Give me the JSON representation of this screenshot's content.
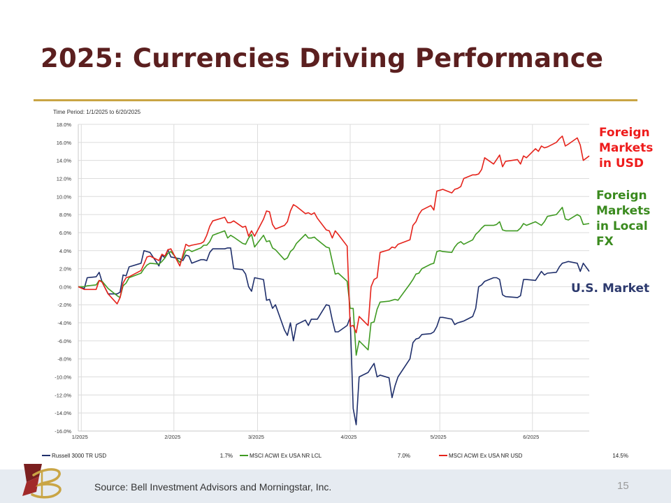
{
  "slide": {
    "title": "2025: Currencies Driving Performance",
    "source": "Source: Bell Investment Advisors and Morningstar, Inc.",
    "page_number": "15"
  },
  "callouts": [
    {
      "lines": [
        "Foreign",
        "Markets",
        "in USD"
      ],
      "color": "#ee1c1c"
    },
    {
      "lines": [
        "Foreign",
        "Markets",
        "in Local",
        "FX"
      ],
      "color": "#3a8a1e"
    },
    {
      "lines": [
        "U.S. Market"
      ],
      "color": "#2d3a6e"
    }
  ],
  "chart_data": {
    "type": "line",
    "period_label": "Time Period: 1/1/2025 to 6/20/2025",
    "ylim": [
      -16,
      18
    ],
    "yticks": [
      "18.0%",
      "16.0%",
      "14.0%",
      "12.0%",
      "10.0%",
      "8.0%",
      "6.0%",
      "4.0%",
      "2.0%",
      "0.0%",
      "-2.0%",
      "-4.0%",
      "-6.0%",
      "-8.0%",
      "-10.0%",
      "-12.0%",
      "-14.0%",
      "-16.0%"
    ],
    "x_range": [
      "2024-12-31",
      "2025-06-20"
    ],
    "xticks": [
      {
        "date": "2025-01-01",
        "label": "1/2025"
      },
      {
        "date": "2025-02-01",
        "label": "2/2025"
      },
      {
        "date": "2025-03-01",
        "label": "3/2025"
      },
      {
        "date": "2025-04-01",
        "label": "4/2025"
      },
      {
        "date": "2025-05-01",
        "label": "5/2025"
      },
      {
        "date": "2025-06-01",
        "label": "6/2025"
      }
    ],
    "grid": true,
    "legend_position": "bottom",
    "series": [
      {
        "name": "Russell 3000 TR USD",
        "legend_value": "1.7%",
        "color": "#1f2f6b",
        "x": [
          "2024-12-31",
          "2025-01-02",
          "2025-01-03",
          "2025-01-06",
          "2025-01-07",
          "2025-01-08",
          "2025-01-10",
          "2025-01-13",
          "2025-01-14",
          "2025-01-15",
          "2025-01-16",
          "2025-01-17",
          "2025-01-21",
          "2025-01-22",
          "2025-01-23",
          "2025-01-24",
          "2025-01-27",
          "2025-01-28",
          "2025-01-29",
          "2025-01-30",
          "2025-01-31",
          "2025-02-03",
          "2025-02-04",
          "2025-02-05",
          "2025-02-06",
          "2025-02-07",
          "2025-02-10",
          "2025-02-11",
          "2025-02-12",
          "2025-02-13",
          "2025-02-14",
          "2025-02-18",
          "2025-02-19",
          "2025-02-20",
          "2025-02-21",
          "2025-02-24",
          "2025-02-25",
          "2025-02-26",
          "2025-02-27",
          "2025-02-28",
          "2025-03-03",
          "2025-03-04",
          "2025-03-05",
          "2025-03-06",
          "2025-03-07",
          "2025-03-10",
          "2025-03-11",
          "2025-03-12",
          "2025-03-13",
          "2025-03-14",
          "2025-03-17",
          "2025-03-18",
          "2025-03-19",
          "2025-03-20",
          "2025-03-21",
          "2025-03-24",
          "2025-03-25",
          "2025-03-26",
          "2025-03-27",
          "2025-03-28",
          "2025-03-31",
          "2025-04-01",
          "2025-04-02",
          "2025-04-03",
          "2025-04-04",
          "2025-04-07",
          "2025-04-08",
          "2025-04-09",
          "2025-04-10",
          "2025-04-11",
          "2025-04-14",
          "2025-04-15",
          "2025-04-16",
          "2025-04-17",
          "2025-04-21",
          "2025-04-22",
          "2025-04-23",
          "2025-04-24",
          "2025-04-25",
          "2025-04-28",
          "2025-04-29",
          "2025-04-30",
          "2025-05-01",
          "2025-05-02",
          "2025-05-05",
          "2025-05-06",
          "2025-05-07",
          "2025-05-08",
          "2025-05-09",
          "2025-05-12",
          "2025-05-13",
          "2025-05-14",
          "2025-05-15",
          "2025-05-16",
          "2025-05-19",
          "2025-05-20",
          "2025-05-21",
          "2025-05-22",
          "2025-05-23",
          "2025-05-27",
          "2025-05-28",
          "2025-05-29",
          "2025-05-30",
          "2025-06-02",
          "2025-06-03",
          "2025-06-04",
          "2025-06-05",
          "2025-06-06",
          "2025-06-09",
          "2025-06-10",
          "2025-06-11",
          "2025-06-12",
          "2025-06-13",
          "2025-06-16",
          "2025-06-17",
          "2025-06-18",
          "2025-06-20"
        ],
        "y": [
          0.0,
          -0.2,
          1.0,
          1.1,
          1.6,
          0.5,
          -0.8,
          -0.8,
          -0.6,
          1.3,
          1.2,
          2.2,
          2.6,
          4.0,
          3.9,
          3.8,
          2.3,
          3.5,
          3.2,
          4.1,
          3.3,
          3.1,
          2.9,
          3.5,
          3.4,
          2.6,
          3.0,
          3.0,
          2.9,
          3.8,
          4.2,
          4.2,
          4.3,
          4.3,
          2.0,
          1.9,
          1.4,
          0.0,
          -0.5,
          1.0,
          0.8,
          -1.5,
          -1.4,
          -2.4,
          -2.0,
          -4.8,
          -5.4,
          -4.0,
          -6.0,
          -4.2,
          -3.7,
          -4.3,
          -3.6,
          -3.6,
          -3.6,
          -2.0,
          -2.1,
          -3.7,
          -5.0,
          -5.0,
          -4.3,
          -3.4,
          -13.5,
          -15.3,
          -10.0,
          -9.5,
          -9.0,
          -8.5,
          -10.0,
          -9.8,
          -10.1,
          -12.3,
          -11.0,
          -10.0,
          -8.0,
          -6.2,
          -5.8,
          -5.7,
          -5.3,
          -5.2,
          -5.0,
          -4.4,
          -3.4,
          -3.4,
          -3.6,
          -4.2,
          -4.0,
          -3.9,
          -3.8,
          -3.3,
          -2.4,
          0.0,
          0.2,
          0.6,
          1.0,
          1.0,
          0.8,
          -0.9,
          -1.1,
          -1.2,
          -1.0,
          0.8,
          0.8,
          0.7,
          1.2,
          1.7,
          1.3,
          1.5,
          1.6,
          2.2,
          2.6,
          2.7,
          2.8,
          2.6,
          1.7,
          2.6,
          1.7
        ],
        "end": 1.7
      },
      {
        "name": "MSCI ACWI Ex USA NR LCL",
        "legend_value": "7.0%",
        "color": "#3f9a22",
        "x": [
          "2024-12-31",
          "2025-01-02",
          "2025-01-03",
          "2025-01-06",
          "2025-01-07",
          "2025-01-08",
          "2025-01-10",
          "2025-01-13",
          "2025-01-14",
          "2025-01-15",
          "2025-01-16",
          "2025-01-17",
          "2025-01-21",
          "2025-01-22",
          "2025-01-23",
          "2025-01-24",
          "2025-01-27",
          "2025-01-28",
          "2025-01-29",
          "2025-01-30",
          "2025-01-31",
          "2025-02-03",
          "2025-02-04",
          "2025-02-05",
          "2025-02-06",
          "2025-02-07",
          "2025-02-10",
          "2025-02-11",
          "2025-02-12",
          "2025-02-13",
          "2025-02-14",
          "2025-02-18",
          "2025-02-19",
          "2025-02-20",
          "2025-02-21",
          "2025-02-24",
          "2025-02-25",
          "2025-02-26",
          "2025-02-27",
          "2025-02-28",
          "2025-03-03",
          "2025-03-04",
          "2025-03-05",
          "2025-03-06",
          "2025-03-07",
          "2025-03-10",
          "2025-03-11",
          "2025-03-12",
          "2025-03-13",
          "2025-03-14",
          "2025-03-17",
          "2025-03-18",
          "2025-03-19",
          "2025-03-20",
          "2025-03-21",
          "2025-03-24",
          "2025-03-25",
          "2025-03-26",
          "2025-03-27",
          "2025-03-28",
          "2025-03-31",
          "2025-04-01",
          "2025-04-02",
          "2025-04-03",
          "2025-04-04",
          "2025-04-07",
          "2025-04-08",
          "2025-04-09",
          "2025-04-10",
          "2025-04-11",
          "2025-04-14",
          "2025-04-15",
          "2025-04-16",
          "2025-04-17",
          "2025-04-21",
          "2025-04-22",
          "2025-04-23",
          "2025-04-24",
          "2025-04-25",
          "2025-04-28",
          "2025-04-29",
          "2025-04-30",
          "2025-05-01",
          "2025-05-02",
          "2025-05-05",
          "2025-05-06",
          "2025-05-07",
          "2025-05-08",
          "2025-05-09",
          "2025-05-12",
          "2025-05-13",
          "2025-05-14",
          "2025-05-15",
          "2025-05-16",
          "2025-05-19",
          "2025-05-20",
          "2025-05-21",
          "2025-05-22",
          "2025-05-23",
          "2025-05-27",
          "2025-05-28",
          "2025-05-29",
          "2025-05-30",
          "2025-06-02",
          "2025-06-03",
          "2025-06-04",
          "2025-06-05",
          "2025-06-06",
          "2025-06-09",
          "2025-06-10",
          "2025-06-11",
          "2025-06-12",
          "2025-06-13",
          "2025-06-16",
          "2025-06-17",
          "2025-06-18",
          "2025-06-20"
        ],
        "y": [
          0.0,
          0.0,
          0.1,
          0.2,
          0.7,
          0.6,
          -0.2,
          -1.0,
          -1.2,
          0.1,
          0.4,
          1.0,
          1.5,
          2.0,
          2.4,
          2.6,
          2.5,
          2.8,
          3.2,
          3.7,
          3.9,
          2.7,
          3.2,
          4.0,
          4.1,
          3.9,
          4.3,
          4.6,
          4.6,
          5.0,
          5.7,
          6.2,
          5.4,
          5.7,
          5.5,
          4.8,
          4.7,
          5.4,
          5.8,
          4.4,
          5.7,
          5.0,
          5.1,
          4.3,
          4.1,
          3.0,
          3.2,
          3.9,
          4.2,
          4.8,
          5.8,
          5.4,
          5.4,
          5.5,
          5.2,
          4.4,
          4.3,
          2.8,
          1.4,
          1.5,
          0.6,
          -2.4,
          -2.4,
          -7.6,
          -6.0,
          -7.0,
          -4.0,
          -3.9,
          -2.5,
          -1.7,
          -1.6,
          -1.5,
          -1.4,
          -1.5,
          0.3,
          0.8,
          1.4,
          1.5,
          2.0,
          2.5,
          2.6,
          3.9,
          4.0,
          3.9,
          3.8,
          4.4,
          4.8,
          5.0,
          4.7,
          5.2,
          5.8,
          6.1,
          6.5,
          6.8,
          6.8,
          6.9,
          7.2,
          6.3,
          6.2,
          6.2,
          6.5,
          7.0,
          6.8,
          7.2,
          7.0,
          6.8,
          7.2,
          7.8,
          8.0,
          8.4,
          8.8,
          7.5,
          7.4,
          8.0,
          7.8,
          6.9,
          7.0
        ],
        "end": 7.0
      },
      {
        "name": "MSCI ACWI Ex USA NR USD",
        "legend_value": "14.5%",
        "color": "#e5231b",
        "x": [
          "2024-12-31",
          "2025-01-02",
          "2025-01-03",
          "2025-01-06",
          "2025-01-07",
          "2025-01-08",
          "2025-01-10",
          "2025-01-13",
          "2025-01-14",
          "2025-01-15",
          "2025-01-16",
          "2025-01-17",
          "2025-01-21",
          "2025-01-22",
          "2025-01-23",
          "2025-01-24",
          "2025-01-27",
          "2025-01-28",
          "2025-01-29",
          "2025-01-30",
          "2025-01-31",
          "2025-02-03",
          "2025-02-04",
          "2025-02-05",
          "2025-02-06",
          "2025-02-07",
          "2025-02-10",
          "2025-02-11",
          "2025-02-12",
          "2025-02-13",
          "2025-02-14",
          "2025-02-18",
          "2025-02-19",
          "2025-02-20",
          "2025-02-21",
          "2025-02-24",
          "2025-02-25",
          "2025-02-26",
          "2025-02-27",
          "2025-02-28",
          "2025-03-03",
          "2025-03-04",
          "2025-03-05",
          "2025-03-06",
          "2025-03-07",
          "2025-03-10",
          "2025-03-11",
          "2025-03-12",
          "2025-03-13",
          "2025-03-14",
          "2025-03-17",
          "2025-03-18",
          "2025-03-19",
          "2025-03-20",
          "2025-03-21",
          "2025-03-24",
          "2025-03-25",
          "2025-03-26",
          "2025-03-27",
          "2025-03-28",
          "2025-03-31",
          "2025-04-01",
          "2025-04-02",
          "2025-04-03",
          "2025-04-04",
          "2025-04-07",
          "2025-04-08",
          "2025-04-09",
          "2025-04-10",
          "2025-04-11",
          "2025-04-14",
          "2025-04-15",
          "2025-04-16",
          "2025-04-17",
          "2025-04-21",
          "2025-04-22",
          "2025-04-23",
          "2025-04-24",
          "2025-04-25",
          "2025-04-28",
          "2025-04-29",
          "2025-04-30",
          "2025-05-01",
          "2025-05-02",
          "2025-05-05",
          "2025-05-06",
          "2025-05-07",
          "2025-05-08",
          "2025-05-09",
          "2025-05-12",
          "2025-05-13",
          "2025-05-14",
          "2025-05-15",
          "2025-05-16",
          "2025-05-19",
          "2025-05-20",
          "2025-05-21",
          "2025-05-22",
          "2025-05-23",
          "2025-05-27",
          "2025-05-28",
          "2025-05-29",
          "2025-05-30",
          "2025-06-02",
          "2025-06-03",
          "2025-06-04",
          "2025-06-05",
          "2025-06-06",
          "2025-06-09",
          "2025-06-10",
          "2025-06-11",
          "2025-06-12",
          "2025-06-13",
          "2025-06-16",
          "2025-06-17",
          "2025-06-18",
          "2025-06-20"
        ],
        "y": [
          0.0,
          -0.3,
          -0.3,
          -0.3,
          0.7,
          0.5,
          -0.8,
          -1.9,
          -1.2,
          0.4,
          1.0,
          1.1,
          1.8,
          2.5,
          3.3,
          3.4,
          2.9,
          3.6,
          3.4,
          4.1,
          4.2,
          2.3,
          3.5,
          4.7,
          4.5,
          4.6,
          4.8,
          5.0,
          5.7,
          6.7,
          7.3,
          7.7,
          7.1,
          7.1,
          7.3,
          6.6,
          6.7,
          5.6,
          6.2,
          5.6,
          7.5,
          8.4,
          8.3,
          6.9,
          6.4,
          6.8,
          7.2,
          8.4,
          9.1,
          8.9,
          8.1,
          8.2,
          8.0,
          8.2,
          7.6,
          6.3,
          6.2,
          5.4,
          6.2,
          5.8,
          4.5,
          -4.4,
          -4.3,
          -5.1,
          -3.3,
          -4.3,
          0.0,
          0.8,
          1.0,
          3.8,
          4.1,
          4.4,
          4.3,
          4.7,
          5.2,
          6.8,
          7.2,
          8.0,
          8.5,
          9.0,
          8.5,
          10.6,
          10.7,
          10.8,
          10.4,
          10.8,
          10.9,
          11.1,
          12.0,
          12.4,
          12.4,
          12.5,
          13.0,
          14.3,
          13.6,
          14.1,
          14.6,
          13.3,
          13.9,
          14.1,
          13.6,
          14.5,
          14.3,
          15.3,
          15.0,
          15.6,
          15.4,
          15.5,
          16.0,
          16.4,
          16.7,
          15.6,
          15.8,
          16.5,
          15.7,
          14.0,
          14.5
        ],
        "end": 14.5
      }
    ]
  }
}
